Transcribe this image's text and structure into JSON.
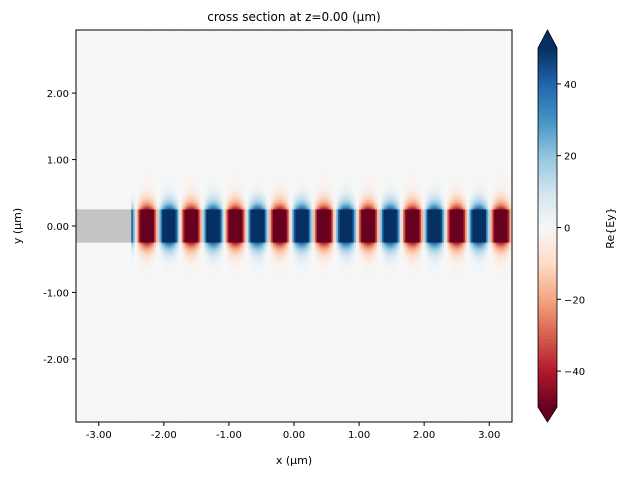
{
  "chart_data": {
    "type": "heatmap",
    "title": "cross section at z=0.00 (μm)",
    "xlabel": "x (μm)",
    "ylabel": "y (μm)",
    "xlim": [
      -3.35,
      3.35
    ],
    "ylim": [
      -2.95,
      2.95
    ],
    "xticks": [
      -3,
      -2,
      -1,
      0,
      1,
      2,
      3
    ],
    "xtick_labels": [
      "-3.00",
      "-2.00",
      "-1.00",
      "0.00",
      "1.00",
      "2.00",
      "3.00"
    ],
    "yticks": [
      -2,
      -1,
      0,
      1,
      2
    ],
    "ytick_labels": [
      "-2.00",
      "-1.00",
      "0.00",
      "1.00",
      "2.00"
    ],
    "colorbar": {
      "label": "Re{Ey}",
      "range": [
        -50,
        50
      ],
      "ticks": [
        -40,
        -20,
        0,
        20,
        40
      ],
      "tick_labels": [
        "−40",
        "−20",
        "0",
        "20",
        "40"
      ],
      "extend": "both",
      "colormap": "RdBu_r"
    },
    "structure": {
      "y_min": -0.25,
      "y_max": 0.25,
      "color": "#c4c4c4"
    },
    "field": {
      "x_start": -2.5,
      "amplitude": 50,
      "period_um": 0.68,
      "positive_peak_x": 0.12,
      "core_half_width_um": 0.25,
      "decay_length_um": 0.12
    },
    "colormap_stops": [
      "#67001f",
      "#b2182b",
      "#d6604d",
      "#f4a582",
      "#fddbc7",
      "#f7f7f7",
      "#d1e5f0",
      "#92c5de",
      "#4393c3",
      "#2166ac",
      "#053061"
    ]
  }
}
